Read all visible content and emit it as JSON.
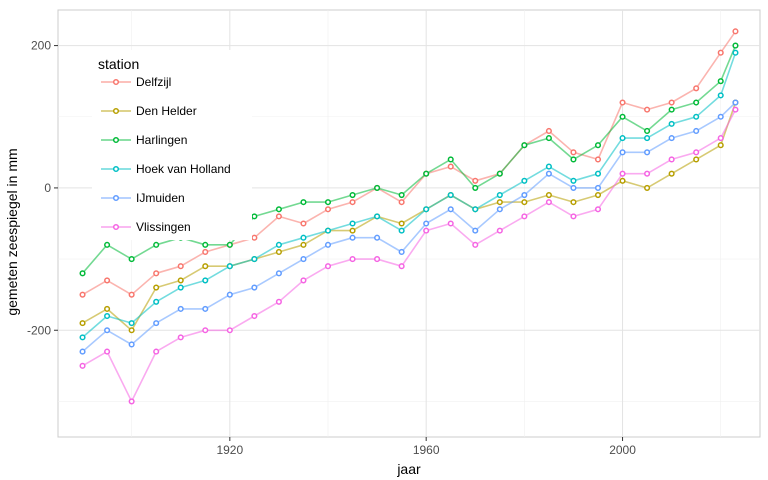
{
  "chart_data": {
    "type": "line",
    "title": "",
    "xlabel": "jaar",
    "ylabel": "gemeten zeespiegel in mm",
    "xlim": [
      1885,
      2028
    ],
    "ylim": [
      -350,
      250
    ],
    "xticks": [
      1920,
      1960,
      2000
    ],
    "yticks": [
      -200,
      0,
      200
    ],
    "grid": true,
    "legend": {
      "title": "station",
      "position": "top-left"
    },
    "x": [
      1890,
      1895,
      1900,
      1905,
      1910,
      1915,
      1920,
      1925,
      1930,
      1935,
      1940,
      1945,
      1950,
      1955,
      1960,
      1965,
      1970,
      1975,
      1980,
      1985,
      1990,
      1995,
      2000,
      2005,
      2010,
      2015,
      2020,
      2023
    ],
    "series": [
      {
        "name": "Delfzijl",
        "color": "#F8766D",
        "values": [
          -150,
          -130,
          -150,
          -120,
          -110,
          -90,
          -80,
          -70,
          -40,
          -50,
          -30,
          -20,
          0,
          -20,
          20,
          30,
          10,
          20,
          60,
          80,
          50,
          40,
          120,
          110,
          120,
          140,
          190,
          220
        ]
      },
      {
        "name": "Den Helder",
        "color": "#B79F00",
        "values": [
          -190,
          -170,
          -200,
          -140,
          -130,
          -110,
          -110,
          -100,
          -90,
          -80,
          -60,
          -60,
          -40,
          -50,
          -30,
          -10,
          -30,
          -20,
          -20,
          -10,
          -20,
          -10,
          10,
          0,
          20,
          40,
          60,
          120
        ]
      },
      {
        "name": "Harlingen",
        "color": "#00BA38",
        "values": [
          -120,
          -80,
          -100,
          -80,
          -70,
          -80,
          -80,
          -40,
          -30,
          -20,
          -20,
          -10,
          0,
          -10,
          20,
          40,
          0,
          20,
          60,
          70,
          40,
          60,
          100,
          80,
          110,
          120,
          150,
          200
        ]
      },
      {
        "name": "Hoek van Holland",
        "color": "#00BFC4",
        "values": [
          -210,
          -180,
          -190,
          -160,
          -140,
          -130,
          -110,
          -100,
          -80,
          -70,
          -60,
          -50,
          -40,
          -60,
          -30,
          -10,
          -30,
          -10,
          10,
          30,
          10,
          20,
          70,
          70,
          90,
          100,
          130,
          190
        ]
      },
      {
        "name": "IJmuiden",
        "color": "#619CFF",
        "values": [
          -230,
          -200,
          -220,
          -190,
          -170,
          -170,
          -150,
          -140,
          -120,
          -100,
          -80,
          -70,
          -70,
          -90,
          -50,
          -30,
          -60,
          -30,
          -10,
          20,
          0,
          0,
          50,
          50,
          70,
          80,
          100,
          120
        ]
      },
      {
        "name": "Vlissingen",
        "color": "#F564E3",
        "values": [
          -250,
          -230,
          -300,
          -230,
          -210,
          -200,
          -200,
          -180,
          -160,
          -130,
          -110,
          -100,
          -100,
          -110,
          -60,
          -50,
          -80,
          -60,
          -40,
          -20,
          -40,
          -30,
          20,
          20,
          40,
          50,
          70,
          110
        ]
      }
    ]
  }
}
